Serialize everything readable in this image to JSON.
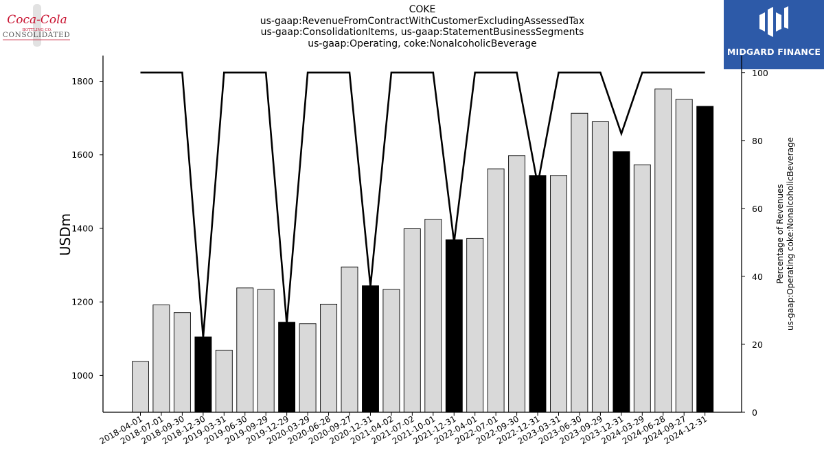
{
  "titles": [
    "COKE",
    "us-gaap:RevenueFromContractWithCustomerExcludingAssessedTax",
    "us-gaap:ConsolidationItems, us-gaap:StatementBusinessSegments",
    "us-gaap:Operating, coke:NonalcoholicBeverage"
  ],
  "logo_left": {
    "script": "Coca-Cola",
    "sub": "BOTTLING CO.",
    "word": "CONSOLIDATED"
  },
  "logo_right": {
    "brand": "MIDGARD FINANCE",
    "color": "#2d5aa8"
  },
  "chart_data": {
    "type": "bar",
    "categories": [
      "2018-04-01",
      "2018-07-01",
      "2018-09-30",
      "2018-12-30",
      "2019-03-31",
      "2019-06-30",
      "2019-09-29",
      "2019-12-29",
      "2020-03-29",
      "2020-06-28",
      "2020-09-27",
      "2020-12-31",
      "2021-04-02",
      "2021-07-02",
      "2021-10-01",
      "2021-12-31",
      "2022-04-01",
      "2022-07-01",
      "2022-09-30",
      "2022-12-31",
      "2023-03-31",
      "2023-06-30",
      "2023-09-29",
      "2023-12-31",
      "2024-03-29",
      "2024-06-28",
      "2024-09-27",
      "2024-12-31"
    ],
    "values": [
      1038,
      1192,
      1171,
      1105,
      1069,
      1238,
      1234,
      1145,
      1141,
      1194,
      1295,
      1244,
      1234,
      1399,
      1425,
      1369,
      1373,
      1562,
      1598,
      1544,
      1544,
      1713,
      1690,
      1609,
      1573,
      1779,
      1751,
      1732
    ],
    "bar_is_annual": [
      false,
      false,
      false,
      true,
      false,
      false,
      false,
      true,
      false,
      false,
      false,
      true,
      false,
      false,
      false,
      true,
      false,
      false,
      false,
      true,
      false,
      false,
      false,
      true,
      false,
      false,
      false,
      true
    ],
    "percentage_series": [
      100,
      100,
      100,
      22,
      100,
      100,
      100,
      26,
      100,
      100,
      100,
      37,
      100,
      100,
      100,
      50,
      100,
      100,
      100,
      67,
      100,
      100,
      100,
      82,
      100,
      100,
      100,
      100
    ],
    "ylabel": "USDm",
    "ylim": [
      900,
      1870
    ],
    "yticks": [
      1000,
      1200,
      1400,
      1600,
      1800
    ],
    "y2label_lines": [
      "Percentage of Revenues",
      "us-gaap:Operating coke:NonalcoholicBeverage"
    ],
    "y2lim": [
      0,
      105
    ],
    "y2ticks": [
      0,
      20,
      40,
      60,
      80,
      100
    ],
    "colors": {
      "quarter_bar": "#d9d9d9",
      "annual_bar": "#000000",
      "line": "#000000"
    }
  }
}
